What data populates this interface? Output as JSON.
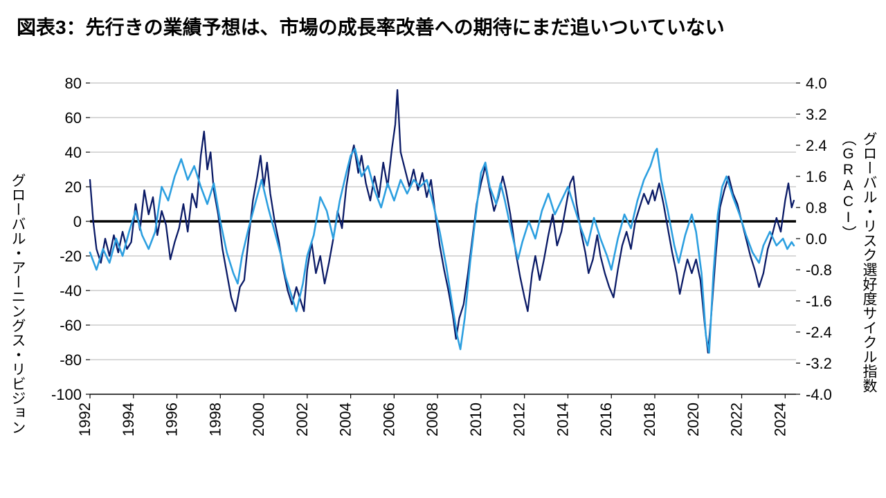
{
  "title": "図表3：先行きの業績予想は、市場の成長率改善への期待にまだ追いついていない",
  "chart": {
    "type": "line",
    "background_color": "#ffffff",
    "grid_color": "#b0b0b0",
    "zero_line_color": "#000000",
    "zero_line_width": 3.5,
    "axis_color": "#000000",
    "left_axis": {
      "label": "グローバル・アーニングス・リビジョン",
      "min": -100,
      "max": 80,
      "ticks": [
        -100,
        -80,
        -60,
        -40,
        -20,
        0,
        20,
        40,
        60,
        80
      ],
      "fontsize": 22
    },
    "right_axis": {
      "label": "グローバル・リスク選好度サイクル指数（GRACI）",
      "min": -4.0,
      "max": 4.0,
      "ticks": [
        -4.0,
        -3.2,
        -2.4,
        -1.6,
        -0.8,
        0.0,
        0.8,
        1.6,
        2.4,
        3.2,
        4.0
      ],
      "fontsize": 22
    },
    "x_axis": {
      "min": 1992,
      "max": 2024.5,
      "ticks": [
        1992,
        1994,
        1996,
        1998,
        2000,
        2002,
        2004,
        2006,
        2008,
        2010,
        2012,
        2014,
        2016,
        2018,
        2020,
        2022,
        2024
      ],
      "fontsize": 22,
      "rotation": -90
    },
    "series": [
      {
        "name": "earnings-revision",
        "axis": "left",
        "color": "#0a1a66",
        "line_width": 2.3,
        "points": [
          [
            1992.0,
            24
          ],
          [
            1992.15,
            0
          ],
          [
            1992.3,
            -16
          ],
          [
            1992.5,
            -24
          ],
          [
            1992.7,
            -10
          ],
          [
            1992.9,
            -20
          ],
          [
            1993.1,
            -8
          ],
          [
            1993.3,
            -18
          ],
          [
            1993.5,
            -6
          ],
          [
            1993.7,
            -16
          ],
          [
            1993.9,
            -12
          ],
          [
            1994.1,
            10
          ],
          [
            1994.3,
            -5
          ],
          [
            1994.5,
            18
          ],
          [
            1994.7,
            4
          ],
          [
            1994.9,
            14
          ],
          [
            1995.1,
            -8
          ],
          [
            1995.3,
            6
          ],
          [
            1995.5,
            -2
          ],
          [
            1995.7,
            -22
          ],
          [
            1995.9,
            -12
          ],
          [
            1996.1,
            -4
          ],
          [
            1996.3,
            10
          ],
          [
            1996.5,
            -6
          ],
          [
            1996.7,
            16
          ],
          [
            1996.9,
            8
          ],
          [
            1997.1,
            38
          ],
          [
            1997.25,
            52
          ],
          [
            1997.4,
            30
          ],
          [
            1997.55,
            40
          ],
          [
            1997.7,
            18
          ],
          [
            1997.9,
            4
          ],
          [
            1998.1,
            -16
          ],
          [
            1998.3,
            -30
          ],
          [
            1998.5,
            -44
          ],
          [
            1998.7,
            -52
          ],
          [
            1998.9,
            -38
          ],
          [
            1999.1,
            -34
          ],
          [
            1999.3,
            -10
          ],
          [
            1999.5,
            12
          ],
          [
            1999.7,
            26
          ],
          [
            1999.85,
            38
          ],
          [
            2000.0,
            20
          ],
          [
            2000.15,
            34
          ],
          [
            2000.3,
            16
          ],
          [
            2000.5,
            0
          ],
          [
            2000.7,
            -12
          ],
          [
            2000.9,
            -28
          ],
          [
            2001.1,
            -40
          ],
          [
            2001.3,
            -48
          ],
          [
            2001.5,
            -38
          ],
          [
            2001.7,
            -46
          ],
          [
            2001.85,
            -52
          ],
          [
            2002.0,
            -28
          ],
          [
            2002.2,
            -12
          ],
          [
            2002.4,
            -30
          ],
          [
            2002.6,
            -20
          ],
          [
            2002.8,
            -36
          ],
          [
            2003.0,
            -24
          ],
          [
            2003.2,
            -10
          ],
          [
            2003.4,
            6
          ],
          [
            2003.6,
            -4
          ],
          [
            2003.8,
            20
          ],
          [
            2004.0,
            36
          ],
          [
            2004.15,
            44
          ],
          [
            2004.35,
            28
          ],
          [
            2004.5,
            38
          ],
          [
            2004.7,
            22
          ],
          [
            2004.9,
            12
          ],
          [
            2005.1,
            26
          ],
          [
            2005.3,
            14
          ],
          [
            2005.5,
            34
          ],
          [
            2005.7,
            20
          ],
          [
            2005.9,
            42
          ],
          [
            2006.05,
            56
          ],
          [
            2006.15,
            76
          ],
          [
            2006.3,
            40
          ],
          [
            2006.5,
            30
          ],
          [
            2006.7,
            20
          ],
          [
            2006.9,
            30
          ],
          [
            2007.1,
            18
          ],
          [
            2007.3,
            28
          ],
          [
            2007.5,
            14
          ],
          [
            2007.7,
            24
          ],
          [
            2007.9,
            4
          ],
          [
            2008.1,
            -14
          ],
          [
            2008.3,
            -28
          ],
          [
            2008.5,
            -40
          ],
          [
            2008.7,
            -54
          ],
          [
            2008.85,
            -68
          ],
          [
            2009.0,
            -56
          ],
          [
            2009.2,
            -48
          ],
          [
            2009.4,
            -30
          ],
          [
            2009.6,
            -10
          ],
          [
            2009.8,
            10
          ],
          [
            2010.0,
            22
          ],
          [
            2010.2,
            32
          ],
          [
            2010.4,
            18
          ],
          [
            2010.6,
            6
          ],
          [
            2010.8,
            14
          ],
          [
            2011.0,
            26
          ],
          [
            2011.15,
            18
          ],
          [
            2011.35,
            4
          ],
          [
            2011.6,
            -18
          ],
          [
            2011.8,
            -32
          ],
          [
            2012.0,
            -44
          ],
          [
            2012.15,
            -52
          ],
          [
            2012.35,
            -30
          ],
          [
            2012.5,
            -20
          ],
          [
            2012.7,
            -34
          ],
          [
            2012.9,
            -22
          ],
          [
            2013.1,
            -8
          ],
          [
            2013.3,
            4
          ],
          [
            2013.5,
            -14
          ],
          [
            2013.7,
            -6
          ],
          [
            2013.9,
            8
          ],
          [
            2014.1,
            22
          ],
          [
            2014.25,
            26
          ],
          [
            2014.4,
            10
          ],
          [
            2014.6,
            -6
          ],
          [
            2014.8,
            -18
          ],
          [
            2014.95,
            -30
          ],
          [
            2015.15,
            -22
          ],
          [
            2015.35,
            -8
          ],
          [
            2015.5,
            -20
          ],
          [
            2015.7,
            -30
          ],
          [
            2015.9,
            -38
          ],
          [
            2016.1,
            -44
          ],
          [
            2016.3,
            -28
          ],
          [
            2016.5,
            -14
          ],
          [
            2016.7,
            -6
          ],
          [
            2016.9,
            -16
          ],
          [
            2017.1,
            0
          ],
          [
            2017.3,
            8
          ],
          [
            2017.5,
            16
          ],
          [
            2017.7,
            10
          ],
          [
            2017.9,
            18
          ],
          [
            2018.0,
            12
          ],
          [
            2018.2,
            22
          ],
          [
            2018.4,
            10
          ],
          [
            2018.6,
            -4
          ],
          [
            2018.8,
            -18
          ],
          [
            2019.0,
            -30
          ],
          [
            2019.15,
            -42
          ],
          [
            2019.35,
            -30
          ],
          [
            2019.5,
            -22
          ],
          [
            2019.7,
            -30
          ],
          [
            2019.9,
            -22
          ],
          [
            2020.1,
            -34
          ],
          [
            2020.3,
            -60
          ],
          [
            2020.45,
            -76
          ],
          [
            2020.6,
            -54
          ],
          [
            2020.8,
            -20
          ],
          [
            2021.0,
            8
          ],
          [
            2021.2,
            18
          ],
          [
            2021.4,
            26
          ],
          [
            2021.6,
            16
          ],
          [
            2021.8,
            10
          ],
          [
            2022.0,
            0
          ],
          [
            2022.2,
            -10
          ],
          [
            2022.4,
            -20
          ],
          [
            2022.6,
            -28
          ],
          [
            2022.8,
            -38
          ],
          [
            2023.0,
            -30
          ],
          [
            2023.2,
            -16
          ],
          [
            2023.4,
            -8
          ],
          [
            2023.6,
            2
          ],
          [
            2023.8,
            -6
          ],
          [
            2024.0,
            12
          ],
          [
            2024.15,
            22
          ],
          [
            2024.3,
            8
          ],
          [
            2024.4,
            12
          ]
        ]
      },
      {
        "name": "graci",
        "axis": "left",
        "color": "#2c9fe0",
        "line_width": 2.6,
        "points": [
          [
            1992.0,
            -18
          ],
          [
            1992.3,
            -28
          ],
          [
            1992.6,
            -16
          ],
          [
            1992.9,
            -24
          ],
          [
            1993.2,
            -10
          ],
          [
            1993.5,
            -20
          ],
          [
            1993.8,
            -6
          ],
          [
            1994.1,
            6
          ],
          [
            1994.4,
            -8
          ],
          [
            1994.7,
            -16
          ],
          [
            1995.0,
            -6
          ],
          [
            1995.3,
            20
          ],
          [
            1995.6,
            12
          ],
          [
            1995.9,
            26
          ],
          [
            1996.2,
            36
          ],
          [
            1996.5,
            24
          ],
          [
            1996.8,
            32
          ],
          [
            1997.1,
            20
          ],
          [
            1997.4,
            10
          ],
          [
            1997.7,
            22
          ],
          [
            1998.0,
            0
          ],
          [
            1998.3,
            -18
          ],
          [
            1998.6,
            -30
          ],
          [
            1998.8,
            -36
          ],
          [
            1999.0,
            -20
          ],
          [
            1999.3,
            -4
          ],
          [
            1999.6,
            10
          ],
          [
            1999.9,
            24
          ],
          [
            2000.2,
            8
          ],
          [
            2000.5,
            -6
          ],
          [
            2000.8,
            -20
          ],
          [
            2001.0,
            -32
          ],
          [
            2001.3,
            -44
          ],
          [
            2001.5,
            -52
          ],
          [
            2001.8,
            -36
          ],
          [
            2002.0,
            -20
          ],
          [
            2002.3,
            -8
          ],
          [
            2002.6,
            14
          ],
          [
            2002.9,
            6
          ],
          [
            2003.2,
            -10
          ],
          [
            2003.5,
            12
          ],
          [
            2003.8,
            28
          ],
          [
            2004.0,
            38
          ],
          [
            2004.2,
            42
          ],
          [
            2004.5,
            26
          ],
          [
            2004.8,
            32
          ],
          [
            2005.1,
            18
          ],
          [
            2005.4,
            8
          ],
          [
            2005.7,
            22
          ],
          [
            2006.0,
            12
          ],
          [
            2006.3,
            24
          ],
          [
            2006.6,
            16
          ],
          [
            2006.9,
            24
          ],
          [
            2007.2,
            20
          ],
          [
            2007.5,
            24
          ],
          [
            2007.8,
            10
          ],
          [
            2008.1,
            -6
          ],
          [
            2008.4,
            -26
          ],
          [
            2008.7,
            -50
          ],
          [
            2008.9,
            -66
          ],
          [
            2009.05,
            -74
          ],
          [
            2009.25,
            -56
          ],
          [
            2009.5,
            -24
          ],
          [
            2009.8,
            8
          ],
          [
            2010.0,
            28
          ],
          [
            2010.2,
            34
          ],
          [
            2010.4,
            20
          ],
          [
            2010.7,
            10
          ],
          [
            2010.9,
            22
          ],
          [
            2011.1,
            12
          ],
          [
            2011.4,
            -6
          ],
          [
            2011.7,
            -22
          ],
          [
            2011.9,
            -12
          ],
          [
            2012.2,
            0
          ],
          [
            2012.5,
            -10
          ],
          [
            2012.8,
            6
          ],
          [
            2013.1,
            16
          ],
          [
            2013.4,
            4
          ],
          [
            2013.7,
            12
          ],
          [
            2014.0,
            20
          ],
          [
            2014.3,
            8
          ],
          [
            2014.6,
            -4
          ],
          [
            2014.9,
            -14
          ],
          [
            2015.2,
            2
          ],
          [
            2015.5,
            -10
          ],
          [
            2015.8,
            -20
          ],
          [
            2016.0,
            -28
          ],
          [
            2016.3,
            -10
          ],
          [
            2016.6,
            4
          ],
          [
            2016.9,
            -4
          ],
          [
            2017.2,
            12
          ],
          [
            2017.5,
            24
          ],
          [
            2017.8,
            32
          ],
          [
            2018.0,
            40
          ],
          [
            2018.1,
            42
          ],
          [
            2018.3,
            24
          ],
          [
            2018.6,
            6
          ],
          [
            2018.9,
            -14
          ],
          [
            2019.1,
            -24
          ],
          [
            2019.4,
            -8
          ],
          [
            2019.7,
            4
          ],
          [
            2019.9,
            -6
          ],
          [
            2020.15,
            -30
          ],
          [
            2020.35,
            -66
          ],
          [
            2020.5,
            -76
          ],
          [
            2020.7,
            -30
          ],
          [
            2020.9,
            4
          ],
          [
            2021.1,
            20
          ],
          [
            2021.3,
            26
          ],
          [
            2021.6,
            14
          ],
          [
            2021.9,
            4
          ],
          [
            2022.2,
            -8
          ],
          [
            2022.5,
            -18
          ],
          [
            2022.8,
            -24
          ],
          [
            2023.0,
            -14
          ],
          [
            2023.3,
            -6
          ],
          [
            2023.6,
            -14
          ],
          [
            2023.9,
            -10
          ],
          [
            2024.1,
            -16
          ],
          [
            2024.3,
            -12
          ],
          [
            2024.4,
            -14
          ]
        ]
      }
    ]
  }
}
